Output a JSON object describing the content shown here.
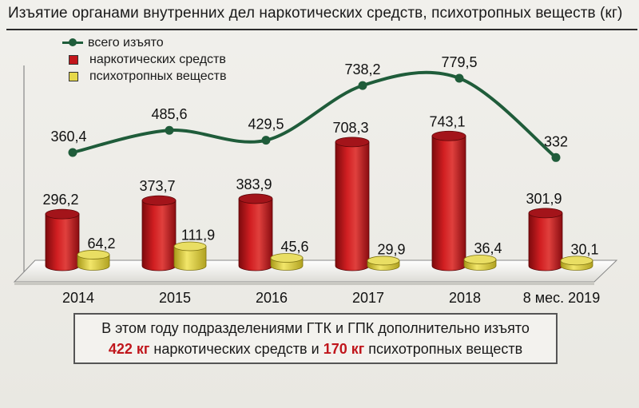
{
  "title": "Изъятие органами внутренних дел наркотических средств, психотропных веществ (кг)",
  "legend": {
    "total": "всего изъято",
    "narcotic": "наркотических средств",
    "psychotropic": "психотропных веществ"
  },
  "colors": {
    "total_line": "#1f5c3a",
    "narcotic": "#c3161b",
    "psychotropic": "#e6d84a"
  },
  "note": {
    "line1": "В этом году подразделениями ГТК и ГПК дополнительно изъято",
    "amount1": "422 кг",
    "mid": "наркотических средств и",
    "amount2": "170 кг",
    "end": "психотропных веществ"
  },
  "chart_data": {
    "type": "bar",
    "title": "Изъятие органами внутренних дел наркотических средств, психотропных веществ (кг)",
    "categories": [
      "2014",
      "2015",
      "2016",
      "2017",
      "2018",
      "8 мес. 2019"
    ],
    "series": [
      {
        "name": "наркотических средств",
        "values": [
          296.2,
          373.7,
          383.9,
          708.3,
          743.1,
          301.9
        ],
        "labels": [
          "296,2",
          "373,7",
          "383,9",
          "708,3",
          "743,1",
          "301,9"
        ]
      },
      {
        "name": "психотропных веществ",
        "values": [
          64.2,
          111.9,
          45.6,
          29.9,
          36.4,
          30.1
        ],
        "labels": [
          "64,2",
          "111,9",
          "45,6",
          "29,9",
          "36,4",
          "30,1"
        ]
      }
    ],
    "line_series": {
      "name": "всего изъято",
      "values": [
        360.4,
        485.6,
        429.5,
        738.2,
        779.5,
        332
      ],
      "labels": [
        "360,4",
        "485,6",
        "429,5",
        "738,2",
        "779,5",
        "332"
      ]
    },
    "grid": false,
    "legend_position": "top-left"
  }
}
